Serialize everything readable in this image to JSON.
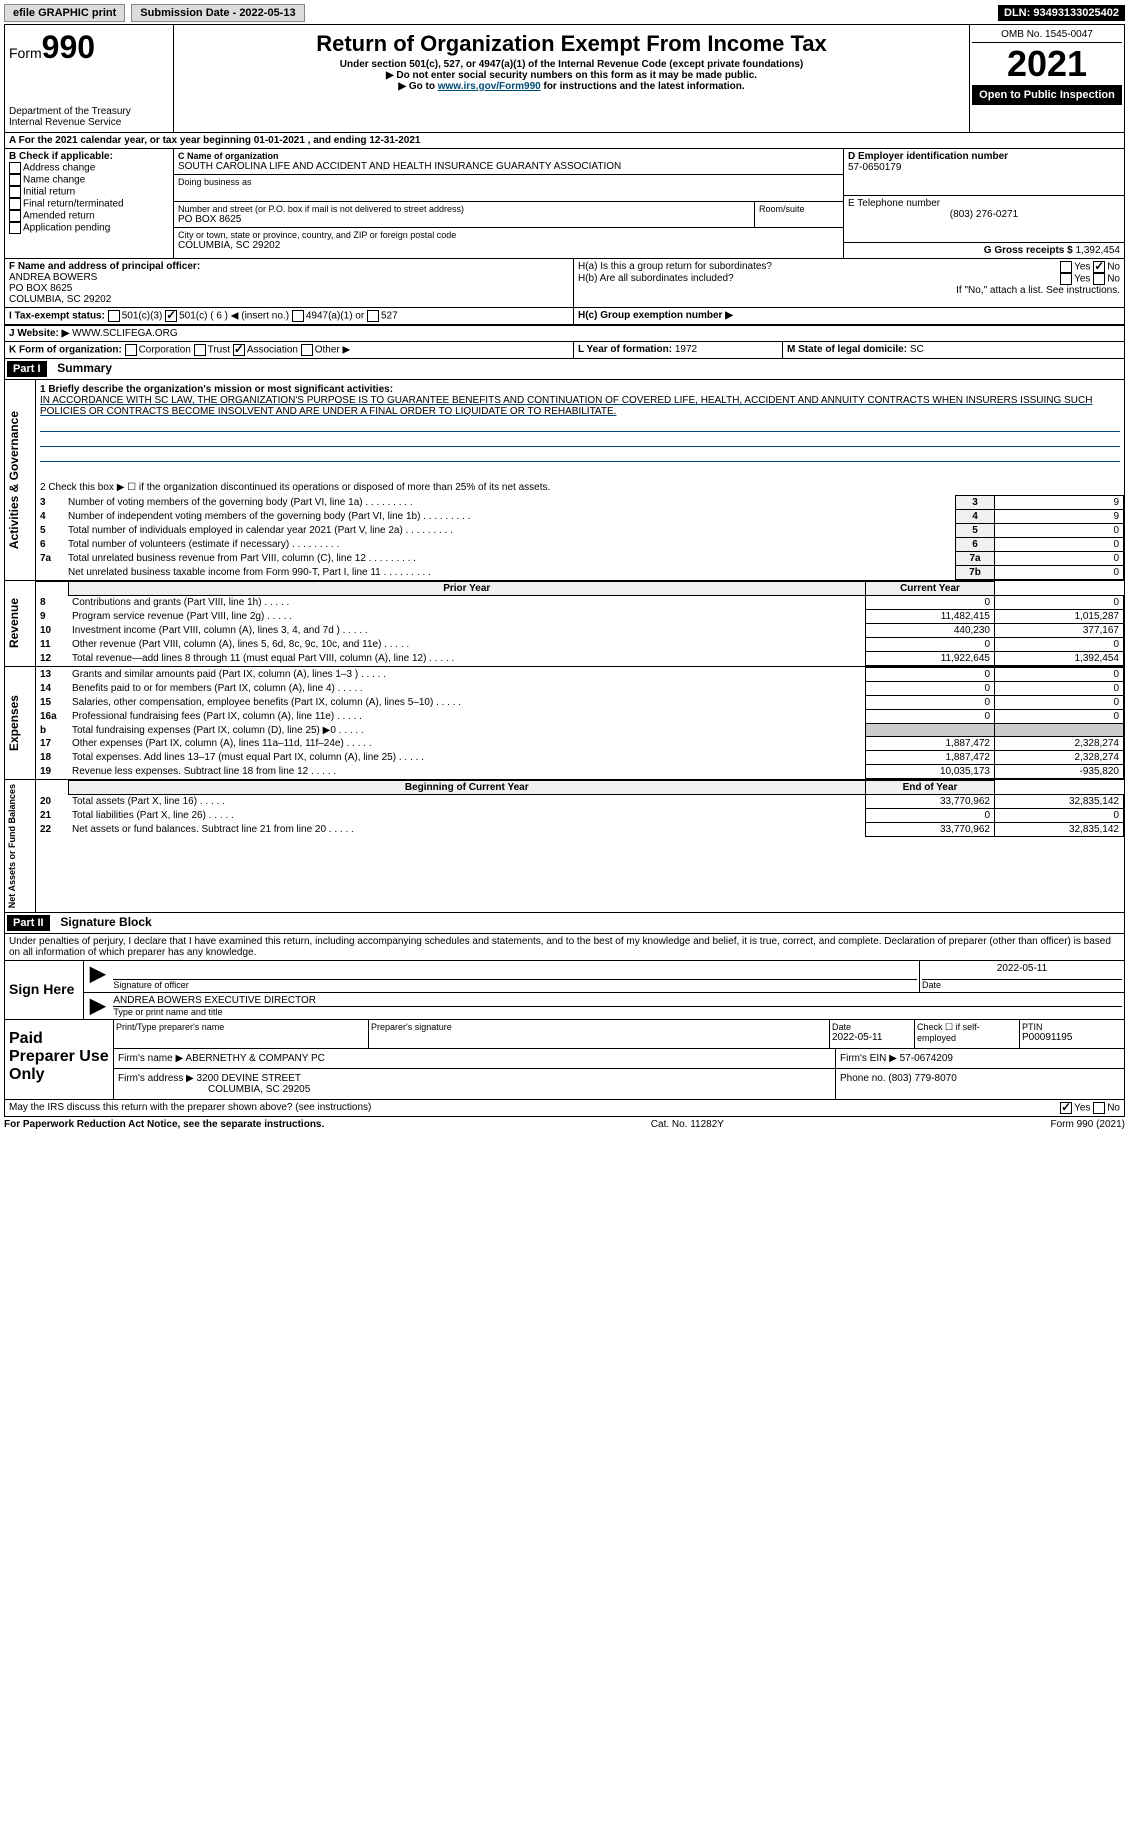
{
  "top": {
    "efile": "efile GRAPHIC print",
    "submission": "Submission Date - 2022-05-13",
    "dln": "DLN: 93493133025402"
  },
  "header": {
    "form_label": "Form",
    "form_number": "990",
    "title": "Return of Organization Exempt From Income Tax",
    "subtitle": "Under section 501(c), 527, or 4947(a)(1) of the Internal Revenue Code (except private foundations)",
    "note1": "▶ Do not enter social security numbers on this form as it may be made public.",
    "note2_pre": "▶ Go to ",
    "note2_link": "www.irs.gov/Form990",
    "note2_post": " for instructions and the latest information.",
    "dept": "Department of the Treasury",
    "irs": "Internal Revenue Service",
    "omb": "OMB No. 1545-0047",
    "year": "2021",
    "open": "Open to Public Inspection"
  },
  "a_line": "A For the 2021 calendar year, or tax year beginning 01-01-2021     , and ending 12-31-2021",
  "b": {
    "label": "B Check if applicable:",
    "opts": [
      "Address change",
      "Name change",
      "Initial return",
      "Final return/terminated",
      "Amended return",
      "Application pending"
    ]
  },
  "c": {
    "label": "C Name of organization",
    "name": "SOUTH CAROLINA LIFE AND ACCIDENT AND HEALTH INSURANCE GUARANTY ASSOCIATION",
    "dba_label": "Doing business as",
    "addr_label": "Number and street (or P.O. box if mail is not delivered to street address)",
    "room_label": "Room/suite",
    "addr": "PO BOX 8625",
    "city_label": "City or town, state or province, country, and ZIP or foreign postal code",
    "city": "COLUMBIA, SC  29202"
  },
  "d": {
    "label": "D Employer identification number",
    "value": "57-0650179"
  },
  "e": {
    "label": "E Telephone number",
    "value": "(803) 276-0271"
  },
  "g": {
    "label": "G Gross receipts $",
    "value": "1,392,454"
  },
  "f": {
    "label": "F Name and address of principal officer:",
    "name": "ANDREA BOWERS",
    "addr1": "PO BOX 8625",
    "addr2": "COLUMBIA, SC  29202"
  },
  "h": {
    "a_label": "H(a)  Is this a group return for subordinates?",
    "b_label": "H(b)  Are all subordinates included?",
    "b_note": "If \"No,\" attach a list. See instructions.",
    "c_label": "H(c)  Group exemption number ▶",
    "yes": "Yes",
    "no": "No"
  },
  "i": {
    "label": "I   Tax-exempt status:",
    "opt1": "501(c)(3)",
    "opt2": "501(c) ( 6 ) ◀ (insert no.)",
    "opt3": "4947(a)(1) or",
    "opt4": "527"
  },
  "j": {
    "label": "J   Website: ▶",
    "value": "WWW.SCLIFEGA.ORG"
  },
  "k": {
    "label": "K Form of organization:",
    "opts": [
      "Corporation",
      "Trust",
      "Association",
      "Other ▶"
    ]
  },
  "l": {
    "label": "L Year of formation:",
    "value": "1972"
  },
  "m": {
    "label": "M State of legal domicile:",
    "value": "SC"
  },
  "part1": {
    "header": "Part I",
    "title": "Summary",
    "gov_label": "Activities & Governance",
    "rev_label": "Revenue",
    "exp_label": "Expenses",
    "net_label": "Net Assets or Fund Balances",
    "line1_label": "1  Briefly describe the organization's mission or most significant activities:",
    "mission": "IN ACCORDANCE WITH SC LAW, THE ORGANIZATION'S PURPOSE IS TO GUARANTEE BENEFITS AND CONTINUATION OF COVERED LIFE, HEALTH, ACCIDENT AND ANNUITY CONTRACTS WHEN INSURERS ISSUING SUCH POLICIES OR CONTRACTS BECOME INSOLVENT AND ARE UNDER A FINAL ORDER TO LIQUIDATE OR TO REHABILITATE.",
    "line2": "2   Check this box ▶ ☐  if the organization discontinued its operations or disposed of more than 25% of its net assets.",
    "prior_year": "Prior Year",
    "current_year": "Current Year",
    "begin_year": "Beginning of Current Year",
    "end_year": "End of Year",
    "rows_gov": [
      {
        "n": "3",
        "t": "Number of voting members of the governing body (Part VI, line 1a)",
        "b": "3",
        "v": "9"
      },
      {
        "n": "4",
        "t": "Number of independent voting members of the governing body (Part VI, line 1b)",
        "b": "4",
        "v": "9"
      },
      {
        "n": "5",
        "t": "Total number of individuals employed in calendar year 2021 (Part V, line 2a)",
        "b": "5",
        "v": "0"
      },
      {
        "n": "6",
        "t": "Total number of volunteers (estimate if necessary)",
        "b": "6",
        "v": "0"
      },
      {
        "n": "7a",
        "t": "Total unrelated business revenue from Part VIII, column (C), line 12",
        "b": "7a",
        "v": "0"
      },
      {
        "n": "",
        "t": "Net unrelated business taxable income from Form 990-T, Part I, line 11",
        "b": "7b",
        "v": "0"
      }
    ],
    "rows_rev": [
      {
        "n": "8",
        "t": "Contributions and grants (Part VIII, line 1h)",
        "p": "0",
        "c": "0"
      },
      {
        "n": "9",
        "t": "Program service revenue (Part VIII, line 2g)",
        "p": "11,482,415",
        "c": "1,015,287"
      },
      {
        "n": "10",
        "t": "Investment income (Part VIII, column (A), lines 3, 4, and 7d )",
        "p": "440,230",
        "c": "377,167"
      },
      {
        "n": "11",
        "t": "Other revenue (Part VIII, column (A), lines 5, 6d, 8c, 9c, 10c, and 11e)",
        "p": "0",
        "c": "0"
      },
      {
        "n": "12",
        "t": "Total revenue—add lines 8 through 11 (must equal Part VIII, column (A), line 12)",
        "p": "11,922,645",
        "c": "1,392,454"
      }
    ],
    "rows_exp": [
      {
        "n": "13",
        "t": "Grants and similar amounts paid (Part IX, column (A), lines 1–3 )",
        "p": "0",
        "c": "0"
      },
      {
        "n": "14",
        "t": "Benefits paid to or for members (Part IX, column (A), line 4)",
        "p": "0",
        "c": "0"
      },
      {
        "n": "15",
        "t": "Salaries, other compensation, employee benefits (Part IX, column (A), lines 5–10)",
        "p": "0",
        "c": "0"
      },
      {
        "n": "16a",
        "t": "Professional fundraising fees (Part IX, column (A), line 11e)",
        "p": "0",
        "c": "0"
      },
      {
        "n": "b",
        "t": "Total fundraising expenses (Part IX, column (D), line 25) ▶0",
        "p": "",
        "c": ""
      },
      {
        "n": "17",
        "t": "Other expenses (Part IX, column (A), lines 11a–11d, 11f–24e)",
        "p": "1,887,472",
        "c": "2,328,274"
      },
      {
        "n": "18",
        "t": "Total expenses. Add lines 13–17 (must equal Part IX, column (A), line 25)",
        "p": "1,887,472",
        "c": "2,328,274"
      },
      {
        "n": "19",
        "t": "Revenue less expenses. Subtract line 18 from line 12",
        "p": "10,035,173",
        "c": "-935,820"
      }
    ],
    "rows_net": [
      {
        "n": "20",
        "t": "Total assets (Part X, line 16)",
        "p": "33,770,962",
        "c": "32,835,142"
      },
      {
        "n": "21",
        "t": "Total liabilities (Part X, line 26)",
        "p": "0",
        "c": "0"
      },
      {
        "n": "22",
        "t": "Net assets or fund balances. Subtract line 21 from line 20",
        "p": "33,770,962",
        "c": "32,835,142"
      }
    ]
  },
  "part2": {
    "header": "Part II",
    "title": "Signature Block",
    "declaration": "Under penalties of perjury, I declare that I have examined this return, including accompanying schedules and statements, and to the best of my knowledge and belief, it is true, correct, and complete. Declaration of preparer (other than officer) is based on all information of which preparer has any knowledge.",
    "sign_here": "Sign Here",
    "sig_officer": "Signature of officer",
    "sig_date": "2022-05-11",
    "date_label": "Date",
    "officer_name": "ANDREA BOWERS  EXECUTIVE DIRECTOR",
    "type_name": "Type or print name and title",
    "paid": "Paid Preparer Use Only",
    "p_name_label": "Print/Type preparer's name",
    "p_sig_label": "Preparer's signature",
    "p_date": "2022-05-11",
    "p_check": "Check ☐ if self-employed",
    "ptin_label": "PTIN",
    "ptin": "P00091195",
    "firm_name_label": "Firm's name     ▶",
    "firm_name": "ABERNETHY & COMPANY PC",
    "firm_ein_label": "Firm's EIN ▶",
    "firm_ein": "57-0674209",
    "firm_addr_label": "Firm's address ▶",
    "firm_addr1": "3200 DEVINE STREET",
    "firm_addr2": "COLUMBIA, SC  29205",
    "firm_phone_label": "Phone no.",
    "firm_phone": "(803) 779-8070",
    "may_irs": "May the IRS discuss this return with the preparer shown above? (see instructions)",
    "footer_left": "For Paperwork Reduction Act Notice, see the separate instructions.",
    "footer_mid": "Cat. No. 11282Y",
    "footer_right": "Form 990 (2021)"
  }
}
